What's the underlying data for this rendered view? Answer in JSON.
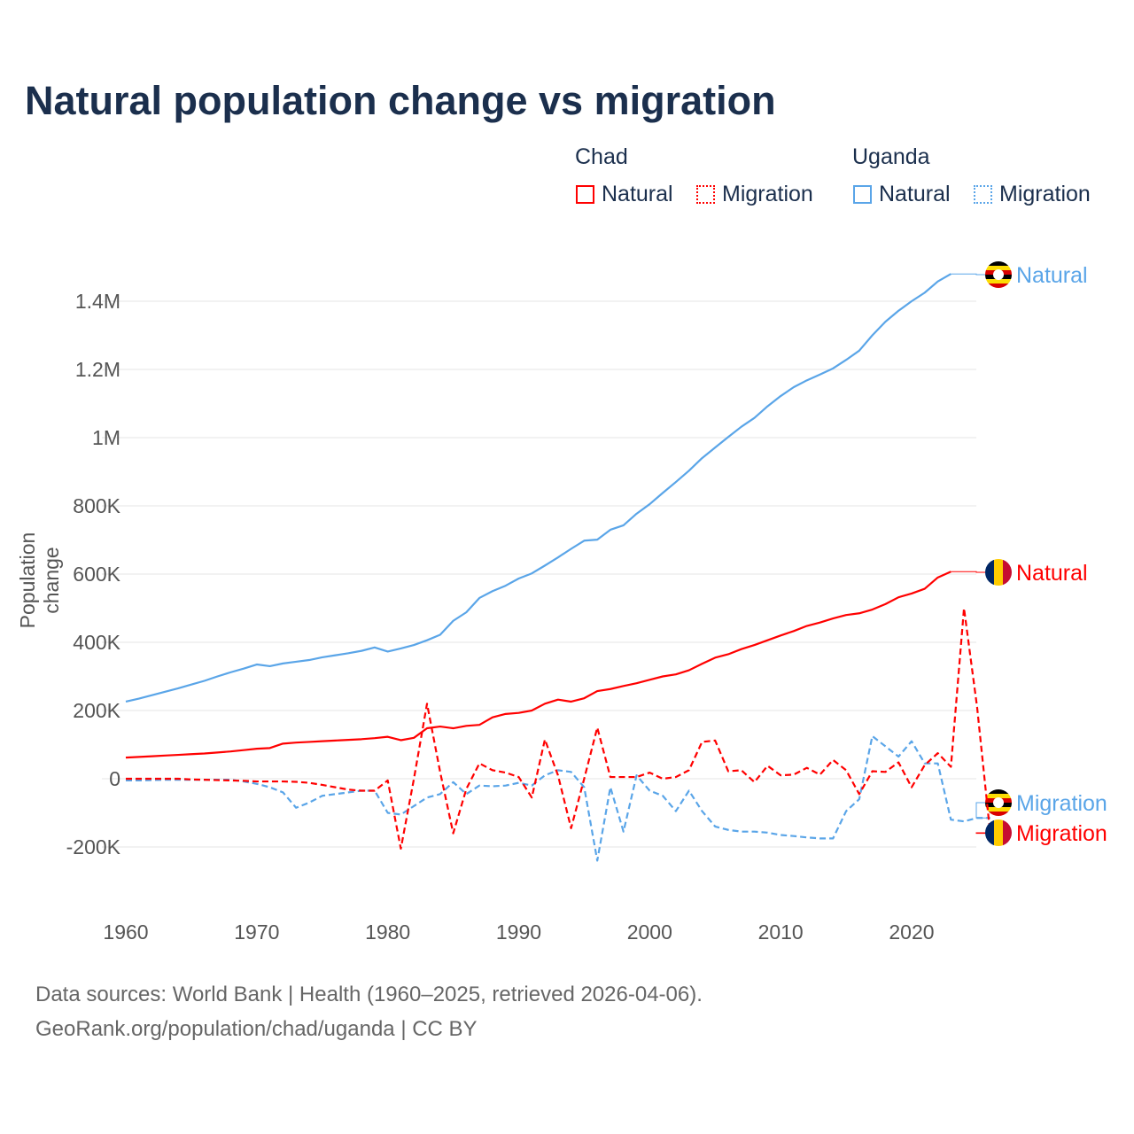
{
  "title": "Natural population change vs migration",
  "legend": {
    "groups": [
      {
        "name": "Chad",
        "items": [
          "Natural",
          "Migration"
        ]
      },
      {
        "name": "Uganda",
        "items": [
          "Natural",
          "Migration"
        ]
      }
    ]
  },
  "colors": {
    "Chad": "#ff0000",
    "Uganda": "#5aa5e8"
  },
  "source_line1": "Data sources: World Bank | Health (1960–2025, retrieved 2026-04-06).",
  "source_line2": "GeoRank.org/population/chad/uganda | CC BY",
  "chart_data": {
    "type": "line",
    "title": "Natural population change vs migration",
    "ylabel": "Population change",
    "xlabel": "",
    "xlim": [
      1960,
      2025
    ],
    "ylim": [
      -300000,
      1500000
    ],
    "x_ticks": [
      {
        "v": 1960,
        "label": "1960"
      },
      {
        "v": 1970,
        "label": "1970"
      },
      {
        "v": 1980,
        "label": "1980"
      },
      {
        "v": 1990,
        "label": "1990"
      },
      {
        "v": 2000,
        "label": "2000"
      },
      {
        "v": 2010,
        "label": "2010"
      },
      {
        "v": 2020,
        "label": "2020"
      }
    ],
    "y_ticks": [
      {
        "v": -200000,
        "label": "-200K"
      },
      {
        "v": 0,
        "label": "0"
      },
      {
        "v": 200000,
        "label": "200K"
      },
      {
        "v": 400000,
        "label": "400K"
      },
      {
        "v": 600000,
        "label": "600K"
      },
      {
        "v": 800000,
        "label": "800K"
      },
      {
        "v": 1000000,
        "label": "1M"
      },
      {
        "v": 1200000,
        "label": "1.2M"
      },
      {
        "v": 1400000,
        "label": "1.4M"
      }
    ],
    "grid": true,
    "series": [
      {
        "name": "Uganda Natural",
        "country": "Uganda",
        "kind": "Natural",
        "label": "Natural",
        "dashed": false,
        "start": 1960,
        "values_k": [
          226,
          235,
          245,
          255,
          265,
          276,
          287,
          300,
          312,
          323,
          335,
          330,
          338,
          343,
          348,
          356,
          362,
          368,
          375,
          385,
          373,
          382,
          392,
          406,
          422,
          463,
          488,
          530,
          550,
          566,
          587,
          602,
          625,
          649,
          674,
          698,
          701,
          730,
          743,
          777,
          805,
          838,
          870,
          903,
          940,
          971,
          1002,
          1032,
          1058,
          1092,
          1122,
          1148,
          1168,
          1185,
          1203,
          1228,
          1255,
          1300,
          1340,
          1372,
          1400,
          1425,
          1458,
          1480
        ]
      },
      {
        "name": "Chad Natural",
        "country": "Chad",
        "kind": "Natural",
        "label": "Natural",
        "dashed": false,
        "start": 1960,
        "values_k": [
          62,
          64,
          66,
          68,
          70,
          72,
          74,
          77,
          80,
          84,
          88,
          90,
          103,
          106,
          108,
          110,
          112,
          114,
          116,
          119,
          123,
          113,
          120,
          148,
          153,
          148,
          155,
          158,
          180,
          190,
          193,
          200,
          220,
          232,
          226,
          236,
          257,
          263,
          272,
          280,
          290,
          300,
          306,
          318,
          337,
          355,
          365,
          380,
          392,
          406,
          420,
          433,
          448,
          458,
          470,
          480,
          485,
          496,
          512,
          532,
          543,
          557,
          590,
          607
        ]
      },
      {
        "name": "Uganda Migration",
        "country": "Uganda",
        "kind": "Migration",
        "label": "Migration",
        "dashed": true,
        "start": 1960,
        "values_k": [
          -5,
          -5,
          -4,
          -3,
          -3,
          -3,
          -3,
          -3,
          -3,
          -8,
          -15,
          -25,
          -40,
          -85,
          -70,
          -50,
          -45,
          -40,
          -35,
          -35,
          -100,
          -105,
          -80,
          -55,
          -45,
          -10,
          -45,
          -20,
          -22,
          -20,
          -12,
          -20,
          10,
          25,
          20,
          -25,
          -240,
          -25,
          -155,
          10,
          -35,
          -50,
          -95,
          -35,
          -95,
          -140,
          -150,
          -155,
          -155,
          -158,
          -165,
          -168,
          -172,
          -175,
          -175,
          -95,
          -60,
          125,
          95,
          65,
          110,
          45,
          45,
          -120,
          -125,
          -115,
          -115
        ]
      },
      {
        "name": "Chad Migration",
        "country": "Chad",
        "kind": "Migration",
        "label": "Migration",
        "dashed": true,
        "start": 1960,
        "values_k": [
          0,
          0,
          0,
          0,
          0,
          -2,
          -3,
          -4,
          -5,
          -6,
          -8,
          -8,
          -8,
          -9,
          -12,
          -18,
          -25,
          -32,
          -35,
          -35,
          -5,
          -205,
          0,
          220,
          20,
          -160,
          -30,
          45,
          25,
          18,
          5,
          -55,
          115,
          10,
          -145,
          0,
          150,
          5,
          5,
          5,
          18,
          0,
          5,
          25,
          108,
          112,
          22,
          25,
          -10,
          38,
          10,
          12,
          32,
          12,
          55,
          25,
          -45,
          22,
          20,
          48,
          -25,
          40,
          75,
          35,
          500,
          210,
          -160
        ]
      }
    ]
  }
}
